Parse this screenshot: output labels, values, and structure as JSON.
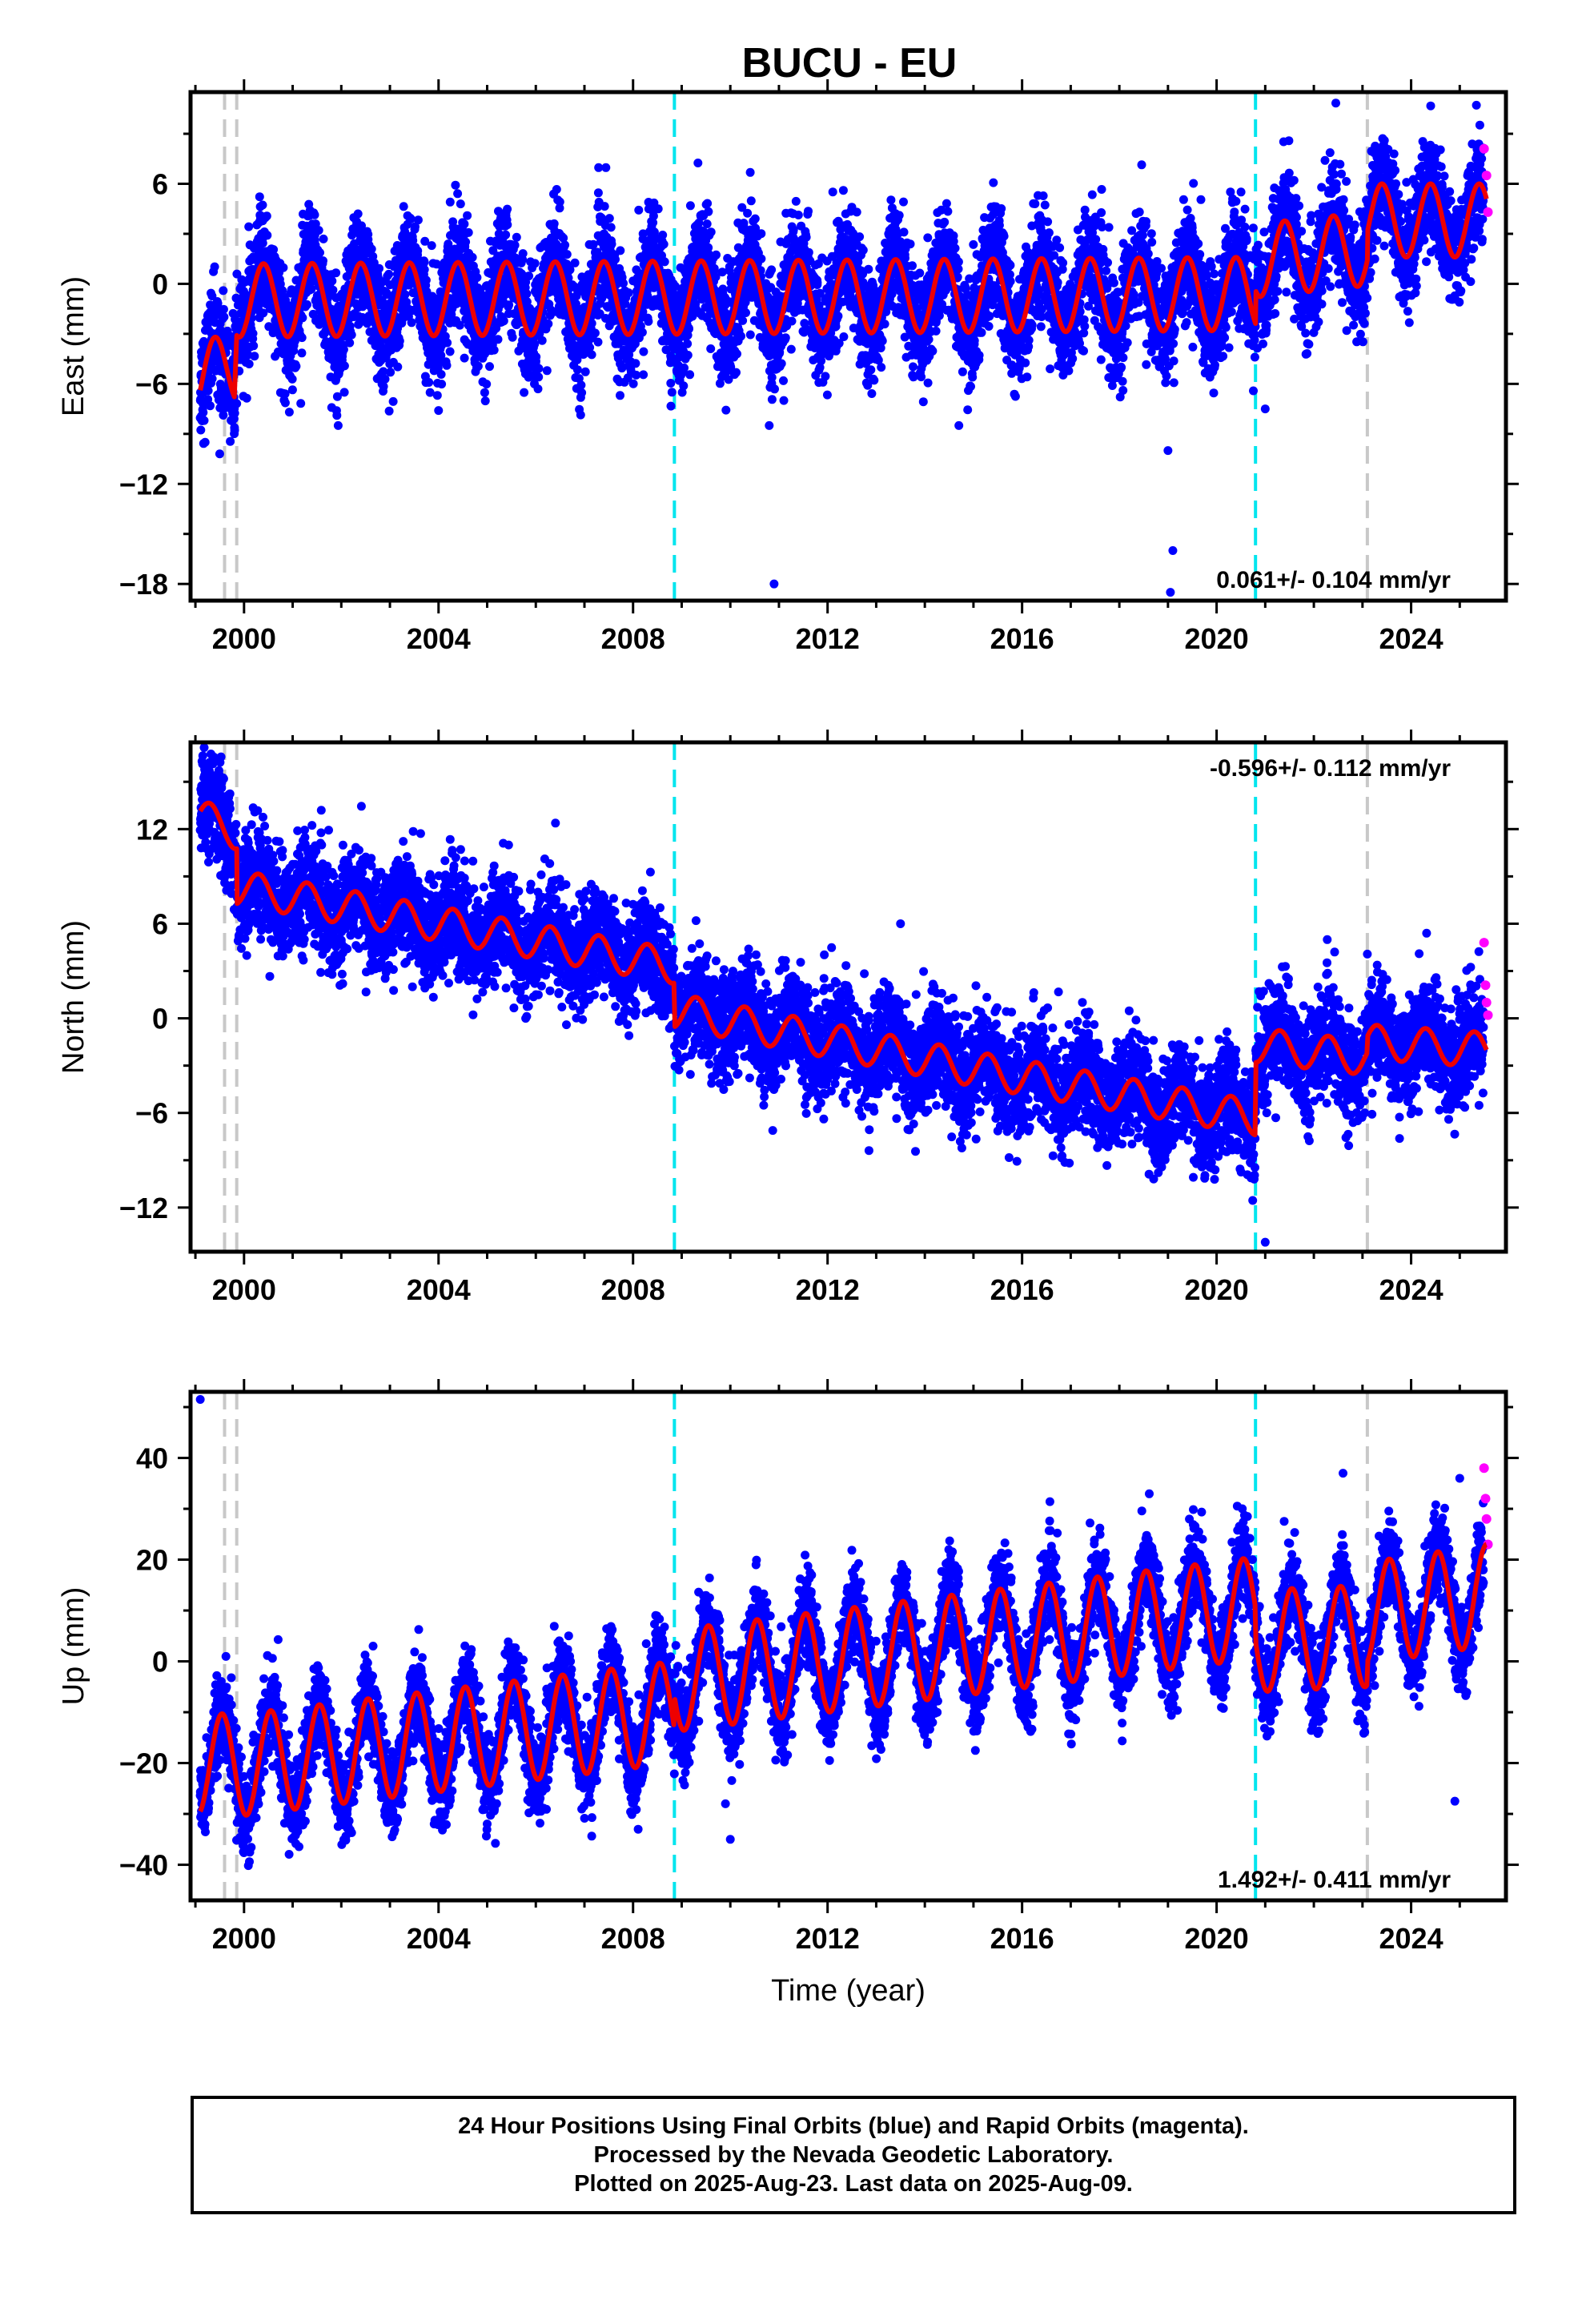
{
  "title": "BUCU - EU",
  "footer": {
    "line1": "24 Hour Positions Using Final Orbits (blue) and Rapid Orbits (magenta).",
    "line2": "Processed by the Nevada Geodetic Laboratory.",
    "line3": "Plotted on 2025-Aug-23. Last data on 2025-Aug-09."
  },
  "colors": {
    "final_orbits": "#0000ff",
    "rapid_orbits": "#ff00ff",
    "model_fit": "#ee0000",
    "equipment_change": "#c8c8c8",
    "earthquake": "#00e5ee"
  },
  "chart_data": [
    {
      "type": "scatter",
      "name": "east",
      "ylabel": "East (mm)",
      "xlabel": "",
      "xlim": [
        1998.9,
        2025.95
      ],
      "ylim": [
        -19,
        11.5
      ],
      "xticks": [
        2000,
        2004,
        2008,
        2012,
        2016,
        2020,
        2024
      ],
      "yticks": [
        6,
        0,
        -6,
        -12,
        -18
      ],
      "ytick_labels": [
        "6",
        "0",
        "−6",
        "−12",
        "−18"
      ],
      "rate_text": "0.061+/- 0.104 mm/yr",
      "rate_position": "bottom-right",
      "vlines_equipment": [
        1999.6,
        1999.85,
        2023.1
      ],
      "vlines_earthquake": [
        2008.85,
        2020.8
      ],
      "fit": {
        "start": 1999.1,
        "end": 2025.55,
        "base": [
          [
            1999.1,
            -5.7
          ],
          [
            1999.8,
            -5.0
          ],
          [
            1999.85,
            -1.0
          ],
          [
            2020.8,
            -0.6
          ],
          [
            2020.81,
            1.4
          ],
          [
            2023.1,
            2.1
          ],
          [
            2023.11,
            3.8
          ],
          [
            2025.55,
            3.8
          ]
        ],
        "amplitude": 2.2,
        "phase_peak": 0.4
      },
      "scatter": {
        "spread": 1.6,
        "series": "final_orbits"
      },
      "rapid": {
        "x": [
          2025.5,
          2025.55,
          2025.58
        ],
        "y": [
          8.1,
          6.5,
          4.3
        ]
      },
      "outliers": {
        "x": [
          1999.2,
          1999.5,
          2004.0,
          2008.8,
          2010.8,
          2010.9,
          2011.1,
          2014.7,
          2019.0,
          2019.1,
          2019.05,
          2021.0
        ],
        "y": [
          -9.5,
          -10.2,
          -7.6,
          -6.5,
          -8.5,
          -18.0,
          -7.0,
          -8.5,
          -10.0,
          -16.0,
          -18.5,
          -7.5
        ]
      }
    },
    {
      "type": "scatter",
      "name": "north",
      "ylabel": "North (mm)",
      "xlabel": "",
      "xlim": [
        1998.9,
        2025.95
      ],
      "ylim": [
        -14.8,
        17.5
      ],
      "xticks": [
        2000,
        2004,
        2008,
        2012,
        2016,
        2020,
        2024
      ],
      "yticks": [
        12,
        6,
        0,
        -6,
        -12
      ],
      "ytick_labels": [
        "12",
        "6",
        "0",
        "−6",
        "−12"
      ],
      "rate_text": "-0.596+/- 0.112 mm/yr",
      "rate_position": "top-right",
      "vlines_equipment": [
        1999.6,
        1999.85,
        2023.1
      ],
      "vlines_earthquake": [
        2008.85,
        2020.8
      ],
      "fit": {
        "start": 1999.1,
        "end": 2025.55,
        "base": [
          [
            1999.1,
            12.8
          ],
          [
            1999.85,
            11.8
          ],
          [
            1999.86,
            8.3
          ],
          [
            2008.84,
            3.3
          ],
          [
            2008.86,
            0.5
          ],
          [
            2015.0,
            -3.2
          ],
          [
            2020.79,
            -6.3
          ],
          [
            2020.81,
            -1.7
          ],
          [
            2023.09,
            -2.5
          ],
          [
            2023.11,
            -1.5
          ],
          [
            2025.55,
            -2.0
          ]
        ],
        "amplitude": 1.1,
        "phase_peak": 0.3
      },
      "scatter": {
        "spread": 1.6,
        "series": "final_orbits"
      },
      "rapid": {
        "x": [
          2025.5,
          2025.53,
          2025.55,
          2025.58
        ],
        "y": [
          4.8,
          2.1,
          1.0,
          0.2
        ]
      },
      "outliers": {
        "x": [
          2013.5,
          2021.0,
          2022.9
        ],
        "y": [
          6.0,
          -14.2,
          -6.5
        ]
      }
    },
    {
      "type": "scatter",
      "name": "up",
      "ylabel": "Up (mm)",
      "xlabel": "Time (year)",
      "xlim": [
        1998.9,
        2025.95
      ],
      "ylim": [
        -47,
        53
      ],
      "xticks": [
        2000,
        2004,
        2008,
        2012,
        2016,
        2020,
        2024
      ],
      "yticks": [
        40,
        20,
        0,
        -20,
        -40
      ],
      "ytick_labels": [
        "40",
        "20",
        "0",
        "−20",
        "−40"
      ],
      "rate_text": "1.492+/- 0.411 mm/yr",
      "rate_position": "bottom-right",
      "vlines_equipment": [
        1999.6,
        1999.85,
        2023.1
      ],
      "vlines_earthquake": [
        2008.85,
        2020.8
      ],
      "fit": {
        "start": 1999.1,
        "end": 2025.55,
        "base": [
          [
            1999.1,
            -20.0
          ],
          [
            1999.85,
            -20.5
          ],
          [
            2008.84,
            -10.0
          ],
          [
            2008.86,
            -3.8
          ],
          [
            2020.79,
            10.5
          ],
          [
            2020.81,
            4.0
          ],
          [
            2023.09,
            5.0
          ],
          [
            2023.11,
            9.5
          ],
          [
            2025.55,
            13.0
          ]
        ],
        "amplitude": 10.0,
        "phase_peak": 0.55
      },
      "scatter": {
        "spread": 4.2,
        "series": "final_orbits"
      },
      "rapid": {
        "x": [
          2025.5,
          2025.53,
          2025.55,
          2025.58
        ],
        "y": [
          38.0,
          32.0,
          28.0,
          23.0
        ]
      },
      "outliers": {
        "x": [
          1999.1,
          2009.9,
          2010.0,
          2022.6,
          2024.9,
          2025.0
        ],
        "y": [
          51.5,
          -28.0,
          -35.0,
          37.0,
          -27.5,
          36.0
        ]
      }
    }
  ]
}
